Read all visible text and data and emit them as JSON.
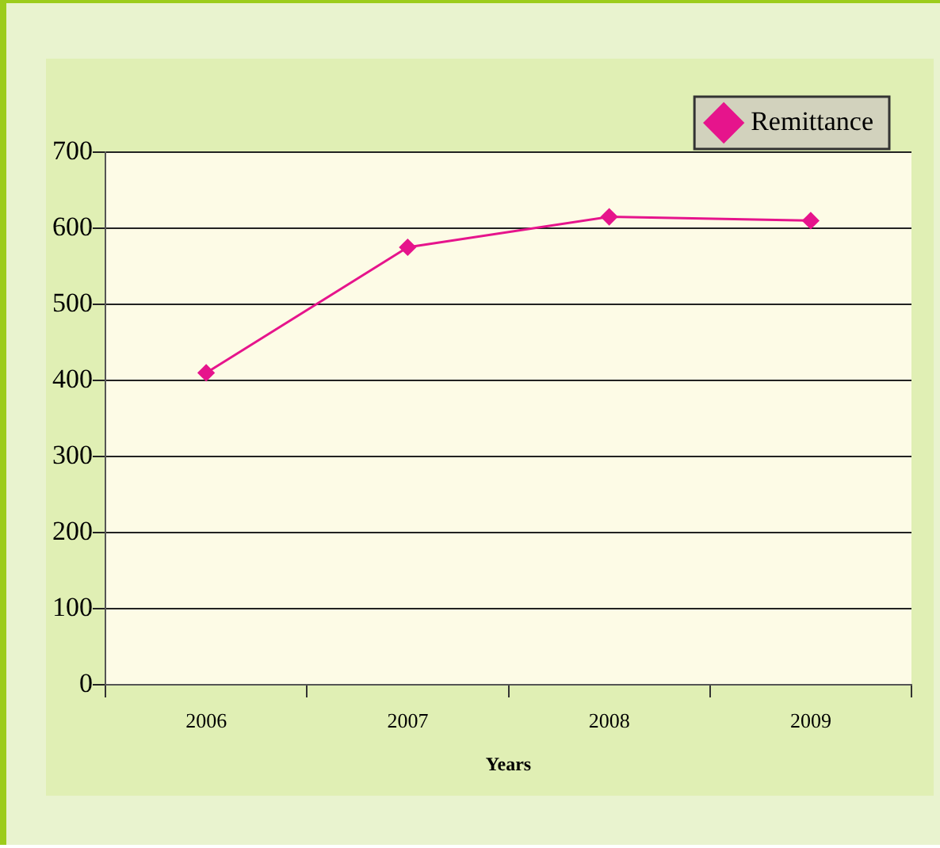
{
  "chart_data": {
    "type": "line",
    "xlabel": "Years",
    "categories": [
      "2006",
      "2007",
      "2008",
      "2009"
    ],
    "series": [
      {
        "name": "Remittance",
        "color": "#e6148c",
        "values": [
          410,
          575,
          615,
          610
        ]
      }
    ],
    "ylim": [
      0,
      700
    ],
    "yticks": [
      0,
      100,
      200,
      300,
      400,
      500,
      600,
      700
    ],
    "grid": "y",
    "legend": "top right",
    "marker": "diamond",
    "line_style": "solid"
  }
}
